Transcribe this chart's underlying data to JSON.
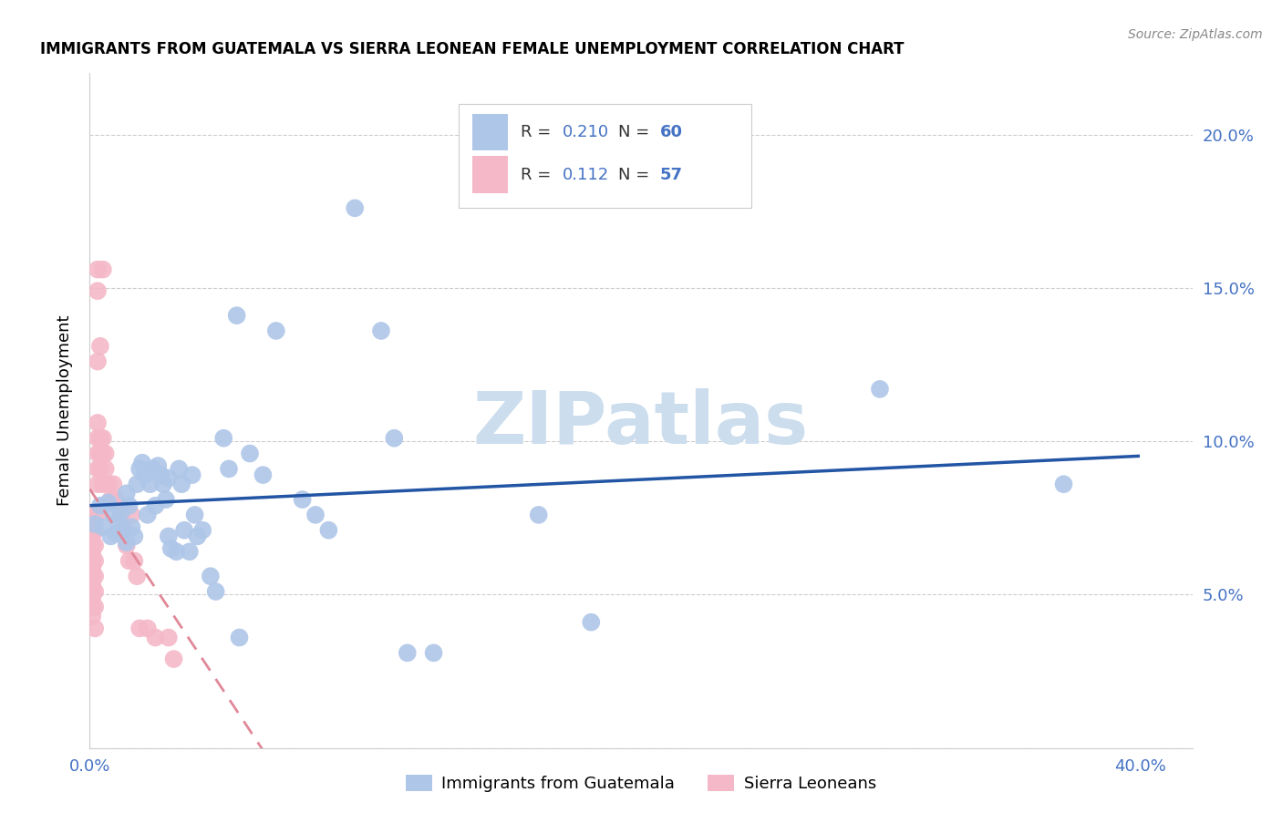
{
  "title": "IMMIGRANTS FROM GUATEMALA VS SIERRA LEONEAN FEMALE UNEMPLOYMENT CORRELATION CHART",
  "source": "Source: ZipAtlas.com",
  "ylabel": "Female Unemployment",
  "xlim": [
    0.0,
    0.42
  ],
  "ylim": [
    0.0,
    0.22
  ],
  "xtick_positions": [
    0.0,
    0.05,
    0.1,
    0.15,
    0.2,
    0.25,
    0.3,
    0.35,
    0.4
  ],
  "xtick_labels": [
    "0.0%",
    "",
    "",
    "",
    "",
    "",
    "",
    "",
    "40.0%"
  ],
  "ytick_positions": [
    0.0,
    0.05,
    0.1,
    0.15,
    0.2
  ],
  "ytick_labels": [
    "",
    "5.0%",
    "10.0%",
    "15.0%",
    "20.0%"
  ],
  "legend1_r": "0.210",
  "legend1_n": "60",
  "legend2_r": "0.112",
  "legend2_n": "57",
  "blue_color": "#aec6e8",
  "pink_color": "#f4b8c8",
  "line_blue_color": "#2255a4",
  "line_pink_color": "#e08898",
  "axis_label_color": "#4472c4",
  "grid_color": "#cccccc",
  "watermark": "ZIPatlas",
  "watermark_color": "#ccdded",
  "blue_points": [
    [
      0.002,
      0.073
    ],
    [
      0.004,
      0.079
    ],
    [
      0.005,
      0.072
    ],
    [
      0.007,
      0.08
    ],
    [
      0.008,
      0.069
    ],
    [
      0.009,
      0.076
    ],
    [
      0.01,
      0.07
    ],
    [
      0.011,
      0.074
    ],
    [
      0.012,
      0.077
    ],
    [
      0.013,
      0.071
    ],
    [
      0.014,
      0.083
    ],
    [
      0.014,
      0.067
    ],
    [
      0.015,
      0.079
    ],
    [
      0.016,
      0.072
    ],
    [
      0.017,
      0.069
    ],
    [
      0.018,
      0.086
    ],
    [
      0.019,
      0.091
    ],
    [
      0.02,
      0.093
    ],
    [
      0.021,
      0.089
    ],
    [
      0.022,
      0.076
    ],
    [
      0.023,
      0.086
    ],
    [
      0.024,
      0.091
    ],
    [
      0.025,
      0.079
    ],
    [
      0.026,
      0.092
    ],
    [
      0.027,
      0.089
    ],
    [
      0.028,
      0.086
    ],
    [
      0.029,
      0.081
    ],
    [
      0.03,
      0.088
    ],
    [
      0.03,
      0.069
    ],
    [
      0.031,
      0.065
    ],
    [
      0.033,
      0.064
    ],
    [
      0.034,
      0.091
    ],
    [
      0.035,
      0.086
    ],
    [
      0.036,
      0.071
    ],
    [
      0.038,
      0.064
    ],
    [
      0.039,
      0.089
    ],
    [
      0.04,
      0.076
    ],
    [
      0.041,
      0.069
    ],
    [
      0.043,
      0.071
    ],
    [
      0.046,
      0.056
    ],
    [
      0.048,
      0.051
    ],
    [
      0.051,
      0.101
    ],
    [
      0.053,
      0.091
    ],
    [
      0.056,
      0.141
    ],
    [
      0.057,
      0.036
    ],
    [
      0.061,
      0.096
    ],
    [
      0.066,
      0.089
    ],
    [
      0.071,
      0.136
    ],
    [
      0.081,
      0.081
    ],
    [
      0.086,
      0.076
    ],
    [
      0.091,
      0.071
    ],
    [
      0.101,
      0.176
    ],
    [
      0.111,
      0.136
    ],
    [
      0.116,
      0.101
    ],
    [
      0.121,
      0.031
    ],
    [
      0.131,
      0.031
    ],
    [
      0.171,
      0.076
    ],
    [
      0.191,
      0.041
    ],
    [
      0.301,
      0.117
    ],
    [
      0.371,
      0.086
    ]
  ],
  "pink_points": [
    [
      0.001,
      0.074
    ],
    [
      0.001,
      0.071
    ],
    [
      0.001,
      0.069
    ],
    [
      0.001,
      0.066
    ],
    [
      0.001,
      0.063
    ],
    [
      0.001,
      0.061
    ],
    [
      0.001,
      0.059
    ],
    [
      0.001,
      0.056
    ],
    [
      0.001,
      0.053
    ],
    [
      0.001,
      0.051
    ],
    [
      0.001,
      0.049
    ],
    [
      0.001,
      0.046
    ],
    [
      0.001,
      0.043
    ],
    [
      0.002,
      0.076
    ],
    [
      0.002,
      0.071
    ],
    [
      0.002,
      0.066
    ],
    [
      0.002,
      0.061
    ],
    [
      0.002,
      0.056
    ],
    [
      0.002,
      0.051
    ],
    [
      0.002,
      0.046
    ],
    [
      0.002,
      0.039
    ],
    [
      0.003,
      0.156
    ],
    [
      0.003,
      0.149
    ],
    [
      0.003,
      0.126
    ],
    [
      0.003,
      0.106
    ],
    [
      0.003,
      0.101
    ],
    [
      0.003,
      0.096
    ],
    [
      0.003,
      0.091
    ],
    [
      0.003,
      0.086
    ],
    [
      0.003,
      0.076
    ],
    [
      0.004,
      0.131
    ],
    [
      0.004,
      0.101
    ],
    [
      0.004,
      0.096
    ],
    [
      0.004,
      0.091
    ],
    [
      0.005,
      0.156
    ],
    [
      0.005,
      0.101
    ],
    [
      0.005,
      0.096
    ],
    [
      0.005,
      0.086
    ],
    [
      0.006,
      0.096
    ],
    [
      0.006,
      0.091
    ],
    [
      0.007,
      0.086
    ],
    [
      0.008,
      0.081
    ],
    [
      0.009,
      0.086
    ],
    [
      0.01,
      0.081
    ],
    [
      0.011,
      0.079
    ],
    [
      0.012,
      0.076
    ],
    [
      0.013,
      0.071
    ],
    [
      0.014,
      0.066
    ],
    [
      0.015,
      0.061
    ],
    [
      0.016,
      0.076
    ],
    [
      0.017,
      0.061
    ],
    [
      0.018,
      0.056
    ],
    [
      0.019,
      0.039
    ],
    [
      0.022,
      0.039
    ],
    [
      0.025,
      0.036
    ],
    [
      0.03,
      0.036
    ],
    [
      0.032,
      0.029
    ]
  ]
}
